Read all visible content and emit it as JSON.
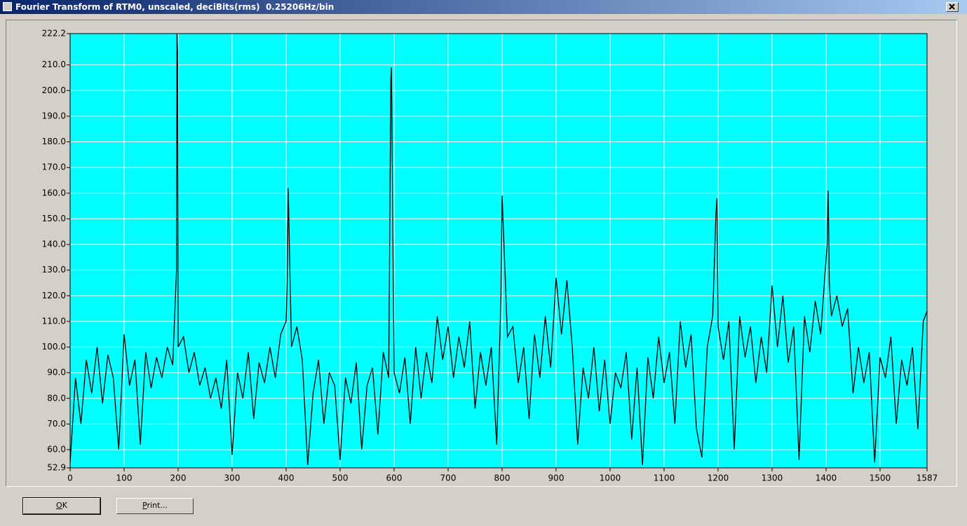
{
  "window": {
    "title": "Fourier Transform of RTM0, unscaled, deciBits(rms)  0.25206Hz/bin"
  },
  "buttons": [
    "OK",
    "Print..."
  ],
  "chart_data": {
    "type": "line",
    "color": "#000000",
    "background": "#00ffff",
    "grid": true,
    "xlim": [
      0,
      1587
    ],
    "ylim": [
      52.9,
      222.2
    ],
    "xticks": [
      0,
      100,
      200,
      300,
      400,
      500,
      600,
      700,
      800,
      900,
      1000,
      1100,
      1200,
      1300,
      1400,
      1500,
      1587
    ],
    "yticks": [
      52.9,
      {
        "value": 60,
        "label": "60.0"
      },
      {
        "value": 70,
        "label": "70.0"
      },
      {
        "value": 80,
        "label": "80.0"
      },
      {
        "value": 90,
        "label": "90.0"
      },
      {
        "value": 100,
        "label": "100.0"
      },
      {
        "value": 110,
        "label": "110.0"
      },
      {
        "value": 120,
        "label": "120.0"
      },
      {
        "value": 130,
        "label": "130.0"
      },
      {
        "value": 140,
        "label": "140.0"
      },
      {
        "value": 150,
        "label": "150.0"
      },
      {
        "value": 160,
        "label": "160.0"
      },
      {
        "value": 170,
        "label": "170.0"
      },
      {
        "value": 180,
        "label": "180.0"
      },
      {
        "value": 190,
        "label": "190.0"
      },
      {
        "value": 200,
        "label": "200.0"
      },
      {
        "value": 210,
        "label": "210.0"
      },
      222.2
    ],
    "x": [
      0,
      10,
      20,
      30,
      40,
      50,
      60,
      70,
      80,
      90,
      100,
      110,
      120,
      130,
      140,
      150,
      160,
      170,
      180,
      190,
      197,
      198,
      199,
      200,
      210,
      220,
      230,
      240,
      250,
      260,
      270,
      280,
      290,
      300,
      310,
      320,
      330,
      340,
      350,
      360,
      370,
      380,
      390,
      400,
      402,
      404,
      406,
      410,
      420,
      430,
      440,
      450,
      460,
      470,
      480,
      490,
      500,
      510,
      520,
      530,
      540,
      550,
      560,
      570,
      580,
      590,
      594,
      595,
      596,
      600,
      610,
      620,
      630,
      640,
      650,
      660,
      670,
      680,
      690,
      700,
      710,
      720,
      730,
      740,
      750,
      760,
      770,
      780,
      790,
      798,
      800,
      802,
      810,
      820,
      830,
      840,
      850,
      860,
      870,
      880,
      890,
      900,
      910,
      920,
      930,
      940,
      950,
      960,
      970,
      980,
      990,
      1000,
      1010,
      1020,
      1030,
      1040,
      1050,
      1060,
      1070,
      1080,
      1090,
      1100,
      1110,
      1120,
      1130,
      1140,
      1150,
      1160,
      1170,
      1180,
      1190,
      1196,
      1198,
      1200,
      1210,
      1220,
      1230,
      1240,
      1250,
      1260,
      1270,
      1280,
      1290,
      1300,
      1310,
      1320,
      1330,
      1340,
      1350,
      1360,
      1370,
      1380,
      1390,
      1402,
      1404,
      1406,
      1410,
      1420,
      1430,
      1440,
      1450,
      1460,
      1470,
      1480,
      1490,
      1500,
      1510,
      1520,
      1530,
      1540,
      1550,
      1560,
      1570,
      1580,
      1587
    ],
    "values": [
      55,
      88,
      70,
      95,
      82,
      100,
      78,
      97,
      88,
      60,
      105,
      85,
      95,
      62,
      98,
      84,
      96,
      88,
      100,
      93,
      130,
      222.2,
      215,
      100,
      104,
      90,
      98,
      85,
      92,
      80,
      88,
      76,
      95,
      58,
      90,
      80,
      98,
      72,
      94,
      86,
      100,
      88,
      105,
      110,
      125,
      162,
      140,
      100,
      108,
      95,
      54,
      82,
      95,
      70,
      90,
      85,
      56,
      88,
      78,
      94,
      60,
      85,
      92,
      66,
      98,
      88,
      205,
      209,
      188,
      90,
      82,
      96,
      70,
      100,
      80,
      98,
      86,
      112,
      95,
      108,
      88,
      104,
      92,
      110,
      76,
      98,
      85,
      100,
      62,
      120,
      159,
      148,
      104,
      108,
      86,
      100,
      72,
      105,
      88,
      112,
      92,
      127,
      105,
      126,
      100,
      62,
      92,
      80,
      100,
      75,
      95,
      70,
      90,
      84,
      98,
      64,
      92,
      54,
      96,
      80,
      104,
      86,
      98,
      70,
      110,
      92,
      105,
      68,
      57,
      100,
      112,
      152,
      158,
      108,
      95,
      110,
      60,
      112,
      96,
      108,
      86,
      104,
      90,
      124,
      100,
      120,
      94,
      108,
      56,
      112,
      98,
      118,
      105,
      140,
      161,
      125,
      112,
      120,
      108,
      115,
      82,
      100,
      86,
      98,
      55,
      96,
      88,
      104,
      70,
      95,
      85,
      100,
      68,
      110,
      114
    ]
  }
}
